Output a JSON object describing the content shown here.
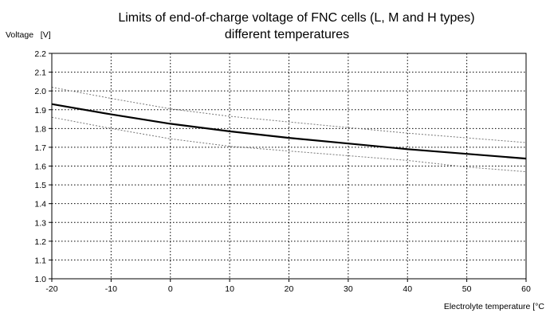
{
  "chart_data": {
    "type": "line",
    "title": "Limits of end-of-charge voltage of FNC cells (L, M and H types)",
    "subtitle": "different temperatures",
    "ylabel": "Voltage   [V]",
    "xlabel": "Electrolyte temperature [°C",
    "xlim": [
      -20,
      60
    ],
    "ylim": [
      1.0,
      2.2
    ],
    "x_ticks": [
      -20,
      -10,
      0,
      10,
      20,
      30,
      40,
      50,
      60
    ],
    "y_ticks": [
      1.0,
      1.1,
      1.2,
      1.3,
      1.4,
      1.5,
      1.6,
      1.7,
      1.8,
      1.9,
      2.0,
      2.1,
      2.2
    ],
    "grid": true,
    "series": [
      {
        "style": "solid",
        "color": "#000000",
        "x": [
          -20,
          -10,
          0,
          10,
          20,
          30,
          40,
          50,
          60
        ],
        "y": [
          1.93,
          1.875,
          1.825,
          1.785,
          1.75,
          1.72,
          1.69,
          1.665,
          1.64
        ]
      },
      {
        "style": "dotted",
        "color": "#777777",
        "x": [
          -20,
          -10,
          0,
          10,
          20,
          30,
          40,
          50,
          60
        ],
        "y": [
          2.02,
          1.96,
          1.905,
          1.865,
          1.835,
          1.805,
          1.775,
          1.75,
          1.725
        ]
      },
      {
        "style": "dotted",
        "color": "#777777",
        "x": [
          -20,
          -10,
          0,
          10,
          20,
          30,
          40,
          50,
          60
        ],
        "y": [
          1.86,
          1.8,
          1.745,
          1.705,
          1.68,
          1.655,
          1.63,
          1.595,
          1.57
        ]
      }
    ]
  }
}
